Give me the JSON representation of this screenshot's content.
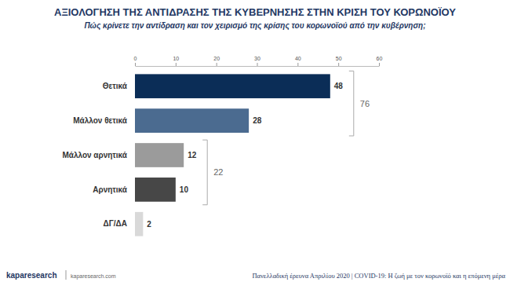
{
  "chart_data": {
    "type": "bar",
    "orientation": "horizontal",
    "title": "ΑΞΙΟΛΟΓΗΣΗ ΤΗΣ ΑΝΤΙΔΡΑΣΗΣ ΤΗΣ ΚΥΒΕΡΝΗΣΗΣ ΣΤΗΝ ΚΡΙΣΗ ΤΟΥ ΚΟΡΩΝΟΪΟΥ",
    "subtitle": "Πώς κρίνετε την αντίδραση και τον χειρισμό της κρίσης του κορωνοϊού από την κυβέρνηση;",
    "categories": [
      "Θετικά",
      "Μάλλον θετικά",
      "Μάλλον αρνητικά",
      "Αρνητικά",
      "ΔΓ/ΔΑ"
    ],
    "values": [
      48,
      28,
      12,
      10,
      2
    ],
    "colors": [
      "#0b2d57",
      "#4b6b90",
      "#9b9b9b",
      "#474747",
      "#d9d9d9"
    ],
    "xlim": [
      0,
      60
    ],
    "xticks": [
      0,
      10,
      20,
      30,
      40,
      50,
      60
    ],
    "grid": false,
    "data_labels": true,
    "brackets": [
      {
        "value": 76,
        "spans": [
          "Θετικά",
          "Μάλλον θετικά"
        ]
      },
      {
        "value": 22,
        "spans": [
          "Μάλλον αρνητικά",
          "Αρνητικά"
        ]
      }
    ],
    "source": "kaparesearch",
    "source_url": "kaparesearch.com",
    "note": "Πανελλαδική έρευνα Απριλίου 2020 | COVID-19: Η ζωή με τον κορωνοϊό και η επόμενη μέρα"
  }
}
